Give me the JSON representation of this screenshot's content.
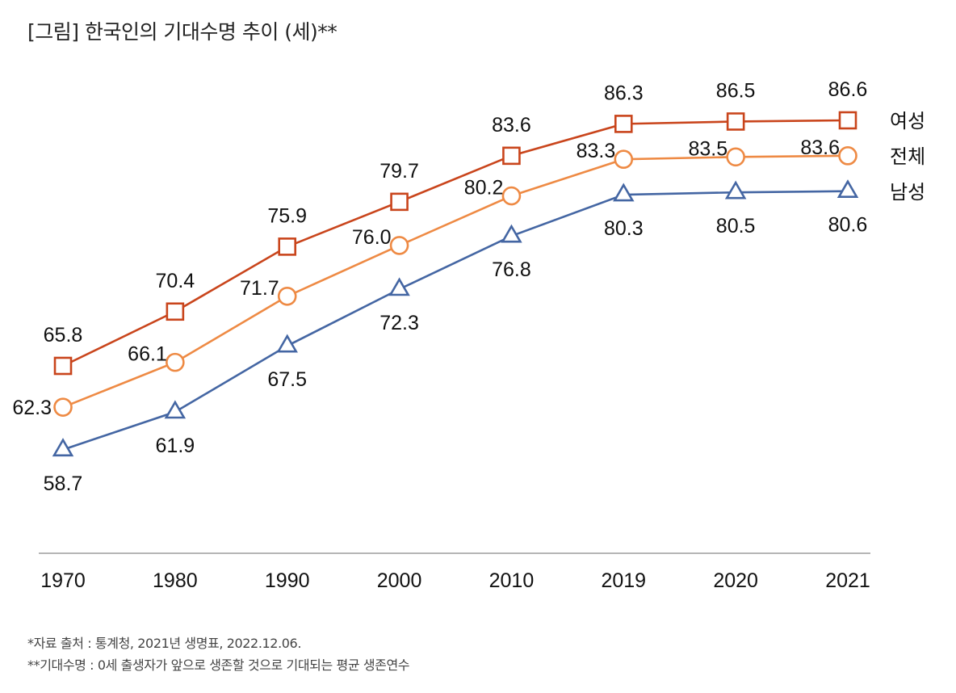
{
  "title": "[그림] 한국인의 기대수명 추이 (세)**",
  "notes": [
    "*자료 출처 : 통계청, 2021년 생명표, 2022.12.06.",
    "**기대수명 : 0세 출생자가 앞으로 생존할 것으로 기대되는 평균 생존연수"
  ],
  "colors": {
    "female": "#c9451c",
    "total": "#ee8a44",
    "male": "#4466a3",
    "axis": "#b5b5b5"
  },
  "chart_data": {
    "type": "line",
    "title": "[그림] 한국인의 기대수명 추이 (세)**",
    "xlabel": "",
    "ylabel": "",
    "categories": [
      "1970",
      "1980",
      "1990",
      "2000",
      "2010",
      "2019",
      "2020",
      "2021"
    ],
    "ylim": [
      50,
      90
    ],
    "grid": false,
    "legend": "right",
    "series": [
      {
        "key": "female",
        "name": "여성",
        "marker": "square",
        "values": [
          65.8,
          70.4,
          75.9,
          79.7,
          83.6,
          86.3,
          86.5,
          86.6
        ],
        "label_position": "above"
      },
      {
        "key": "total",
        "name": "전체",
        "marker": "circle",
        "values": [
          62.3,
          66.1,
          71.7,
          76.0,
          80.2,
          83.3,
          83.5,
          83.6
        ],
        "label_position": "left"
      },
      {
        "key": "male",
        "name": "남성",
        "marker": "triangle",
        "values": [
          58.7,
          61.9,
          67.5,
          72.3,
          76.8,
          80.3,
          80.5,
          80.6
        ],
        "label_position": "below"
      }
    ]
  }
}
